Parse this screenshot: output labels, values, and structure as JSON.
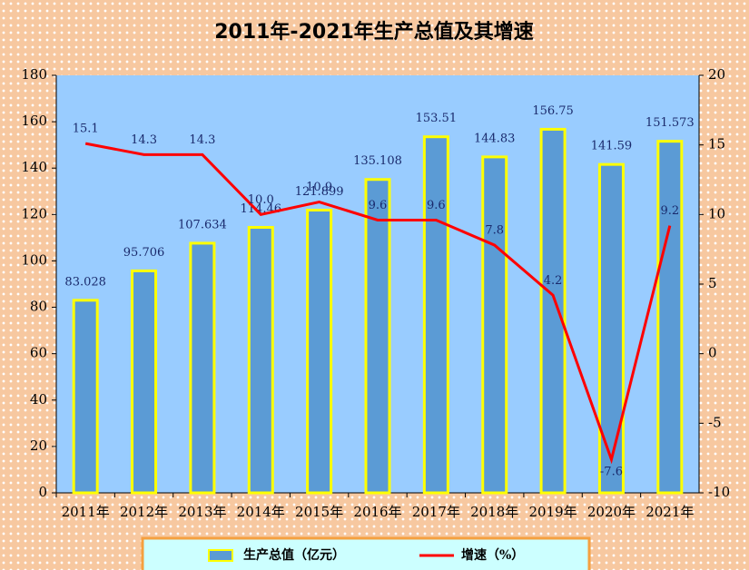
{
  "chart_data": {
    "type": "bar",
    "title": "2011年-2021年生产总值及其增速",
    "categories": [
      "2011年",
      "2012年",
      "2013年",
      "2014年",
      "2015年",
      "2016年",
      "2017年",
      "2018年",
      "2019年",
      "2020年",
      "2021年"
    ],
    "series": [
      {
        "name": "生产总值（亿元）",
        "type": "bar",
        "color": "#5b9bd5",
        "edge_color": "#ffff00",
        "values": [
          83.028,
          95.706,
          107.634,
          114.46,
          121.899,
          135.108,
          153.51,
          144.83,
          156.75,
          141.59,
          151.573
        ]
      },
      {
        "name": "增速（%）",
        "type": "line",
        "axis": "y2",
        "color": "#ff0000",
        "values": [
          15.1,
          14.3,
          14.3,
          10.0,
          10.9,
          9.6,
          9.6,
          7.8,
          4.2,
          -7.6,
          9.2
        ],
        "value_labels": [
          "15.1",
          "14.3",
          "14.3",
          "10.0",
          "10.9",
          "9.6",
          "9.6",
          "7.8",
          "4.2",
          "-7.6",
          "9.2"
        ]
      }
    ],
    "ylim": [
      0,
      180
    ],
    "yticks": [
      0,
      20,
      40,
      60,
      80,
      100,
      120,
      140,
      160,
      180
    ],
    "y2lim": [
      -10,
      20
    ],
    "y2ticks": [
      -10,
      -5,
      0,
      5,
      10,
      15,
      20
    ],
    "grid": false
  }
}
